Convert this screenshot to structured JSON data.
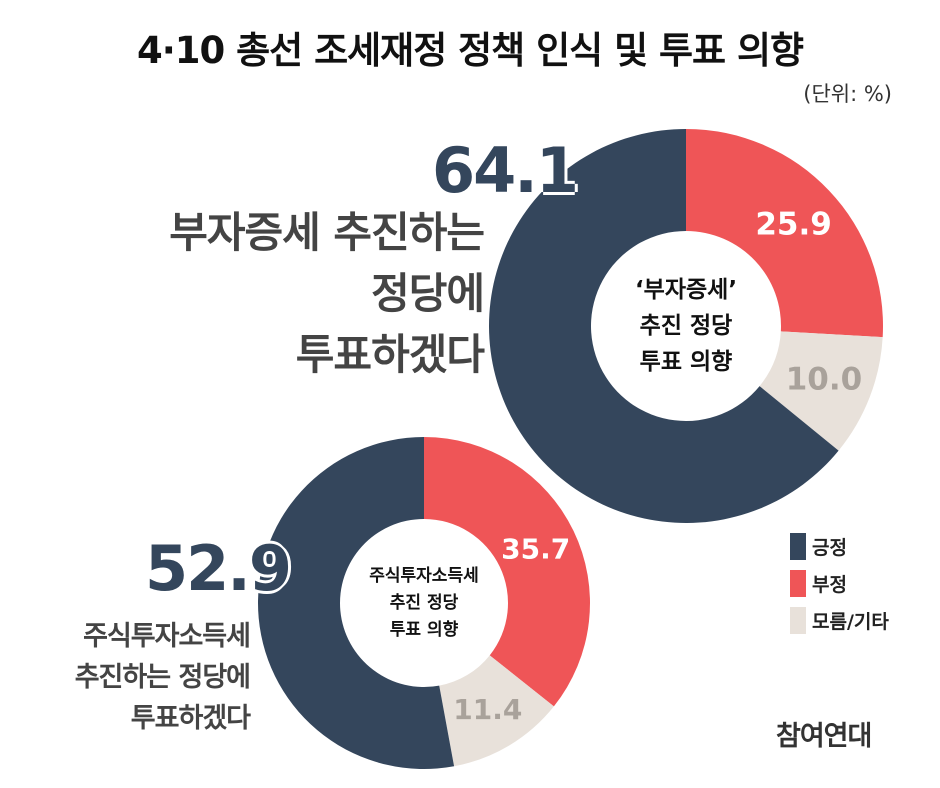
{
  "title": "4·10 총선 조세재정 정책 인식 및 투표 의향",
  "unit": "(단위: %)",
  "colors": {
    "positive": "#34465c",
    "negative": "#ef5557",
    "other": "#e8e1da"
  },
  "legend": [
    {
      "label": "긍정",
      "color": "#34465c"
    },
    {
      "label": "부정",
      "color": "#ef5557"
    },
    {
      "label": "모름/기타",
      "color": "#e8e1da"
    }
  ],
  "logo": "참여연대",
  "chart_data": [
    {
      "type": "pie",
      "center_label": [
        "‘부자증세’",
        "추진 정당",
        "투표 의향"
      ],
      "highlight_value": "64.1",
      "caption": [
        "부자증세 추진하는",
        "정당에",
        "투표하겠다"
      ],
      "slices": [
        {
          "label": "긍정",
          "value": 64.1,
          "value_label": "64.1"
        },
        {
          "label": "부정",
          "value": 25.9,
          "value_label": "25.9"
        },
        {
          "label": "모름/기타",
          "value": 10.0,
          "value_label": "10.0"
        }
      ]
    },
    {
      "type": "pie",
      "center_label": [
        "주식투자소득세",
        "추진 정당",
        "투표 의향"
      ],
      "highlight_value": "52.9",
      "caption": [
        "주식투자소득세",
        "추진하는 정당에",
        "투표하겠다"
      ],
      "slices": [
        {
          "label": "긍정",
          "value": 52.9,
          "value_label": "52.9"
        },
        {
          "label": "부정",
          "value": 35.7,
          "value_label": "35.7"
        },
        {
          "label": "모름/기타",
          "value": 11.4,
          "value_label": "11.4"
        }
      ]
    }
  ]
}
